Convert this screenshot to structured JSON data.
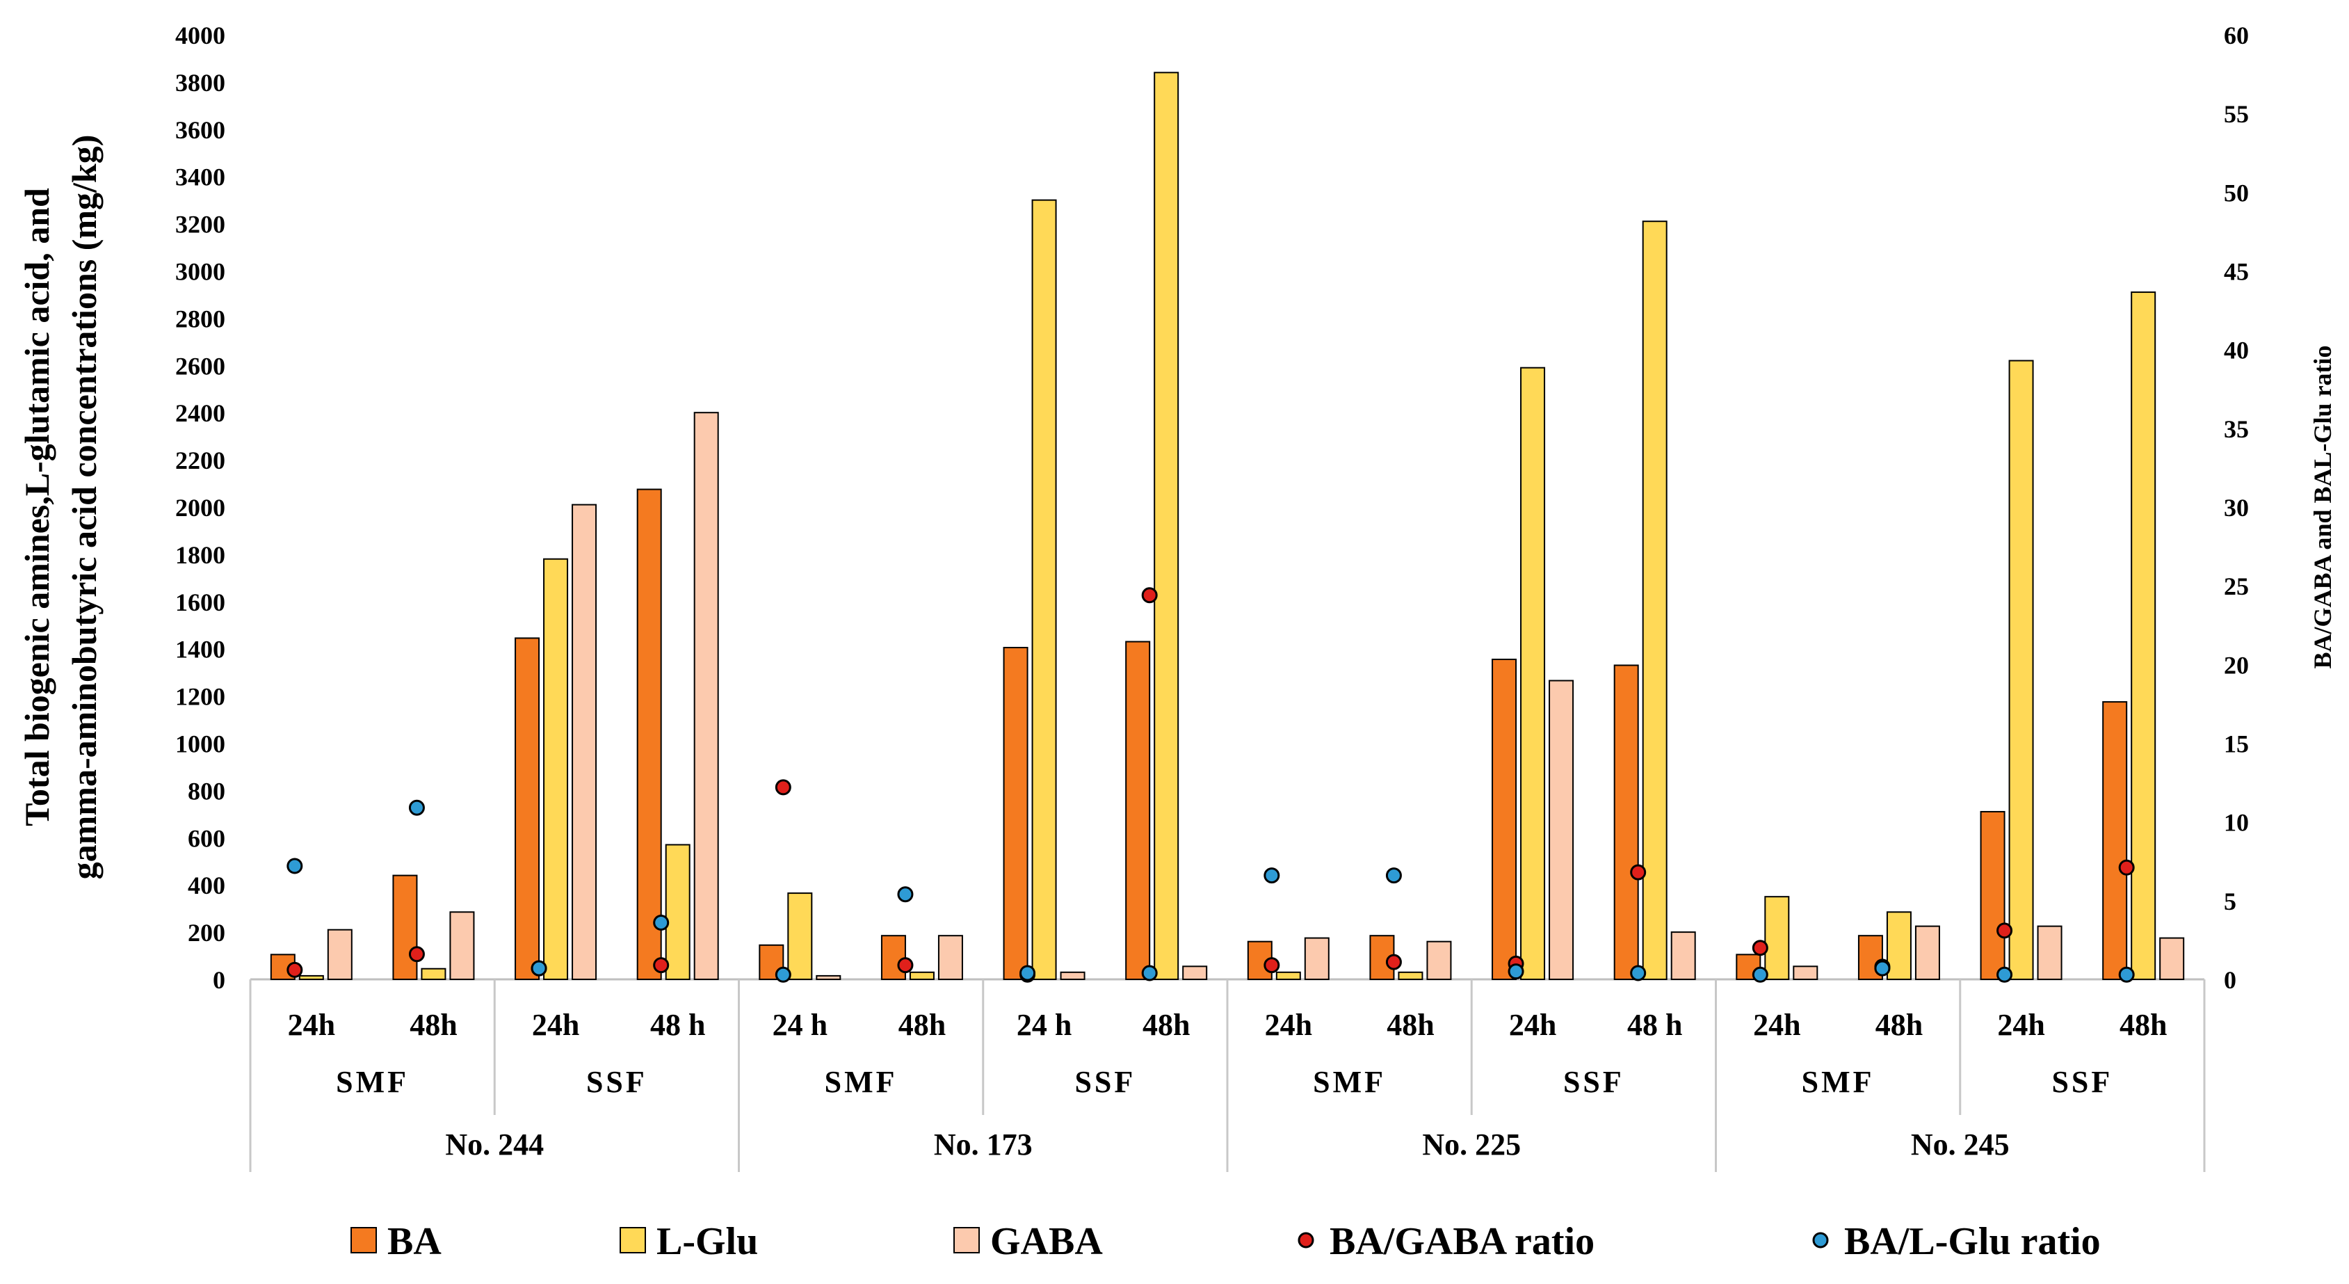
{
  "chart_data": {
    "type": "bar",
    "title": "",
    "ylabel_lines": [
      "Total biogenic amines,L-glutamic acid, and",
      "gamma-aminobutyric acid concentrations  (mg/kg)"
    ],
    "y2label": "BA/GABA and BAL-Glu ratio",
    "ylim": [
      0,
      4000
    ],
    "yticks": [
      0,
      200,
      400,
      600,
      800,
      1000,
      1200,
      1400,
      1600,
      1800,
      2000,
      2200,
      2400,
      2600,
      2800,
      3000,
      3200,
      3400,
      3600,
      3800,
      4000
    ],
    "y2lim": [
      0,
      60
    ],
    "y2ticks": [
      0,
      5,
      10,
      15,
      20,
      25,
      30,
      35,
      40,
      45,
      50,
      55,
      60
    ],
    "categories": [
      "24h",
      "48h",
      "24h",
      "48 h",
      "24 h",
      "48h",
      "24 h",
      "48h",
      "24h",
      "48h",
      "24h",
      "48 h",
      "24h",
      "48h",
      "24h",
      "48h"
    ],
    "method_groups": [
      "SMF",
      "SSF",
      "SMF",
      "SSF",
      "SMF",
      "SSF",
      "SMF",
      "SSF"
    ],
    "strain_groups": [
      "No. 244",
      "No. 173",
      "No. 225",
      "No. 245"
    ],
    "series": [
      {
        "name": "BA",
        "type": "bar",
        "axis": "left",
        "color": "#F47A20",
        "values": [
          105,
          440,
          1445,
          2075,
          145,
          185,
          1405,
          1430,
          160,
          185,
          1355,
          1330,
          105,
          185,
          710,
          1175
        ]
      },
      {
        "name": "L-Glu",
        "type": "bar",
        "axis": "left",
        "color": "#FFD957",
        "values": [
          15,
          45,
          1780,
          570,
          365,
          30,
          3300,
          3840,
          30,
          30,
          2590,
          3210,
          350,
          285,
          2620,
          2910
        ]
      },
      {
        "name": "GABA",
        "type": "bar",
        "axis": "left",
        "color": "#FCCAAE",
        "values": [
          210,
          285,
          2010,
          2400,
          15,
          185,
          30,
          55,
          175,
          160,
          1265,
          200,
          55,
          225,
          225,
          175
        ]
      },
      {
        "name": "BA/GABA ratio",
        "type": "scatter",
        "axis": "right",
        "color": "#E0201B",
        "values": [
          0.6,
          1.6,
          0.7,
          0.9,
          12.2,
          0.9,
          0.3,
          24.4,
          0.9,
          1.1,
          1.0,
          6.8,
          2.0,
          0.8,
          3.1,
          7.1
        ]
      },
      {
        "name": "BA/L-Glu ratio",
        "type": "scatter",
        "axis": "right",
        "color": "#2E9BD5",
        "values": [
          7.2,
          10.9,
          0.7,
          3.6,
          0.3,
          5.4,
          0.4,
          0.4,
          6.6,
          6.6,
          0.5,
          0.4,
          0.3,
          0.7,
          0.3,
          0.3
        ]
      }
    ],
    "legend": [
      "BA",
      "L-Glu",
      "GABA",
      "BA/GABA ratio",
      "BA/L-Glu ratio"
    ],
    "legend_position": "bottom",
    "grid": false
  }
}
